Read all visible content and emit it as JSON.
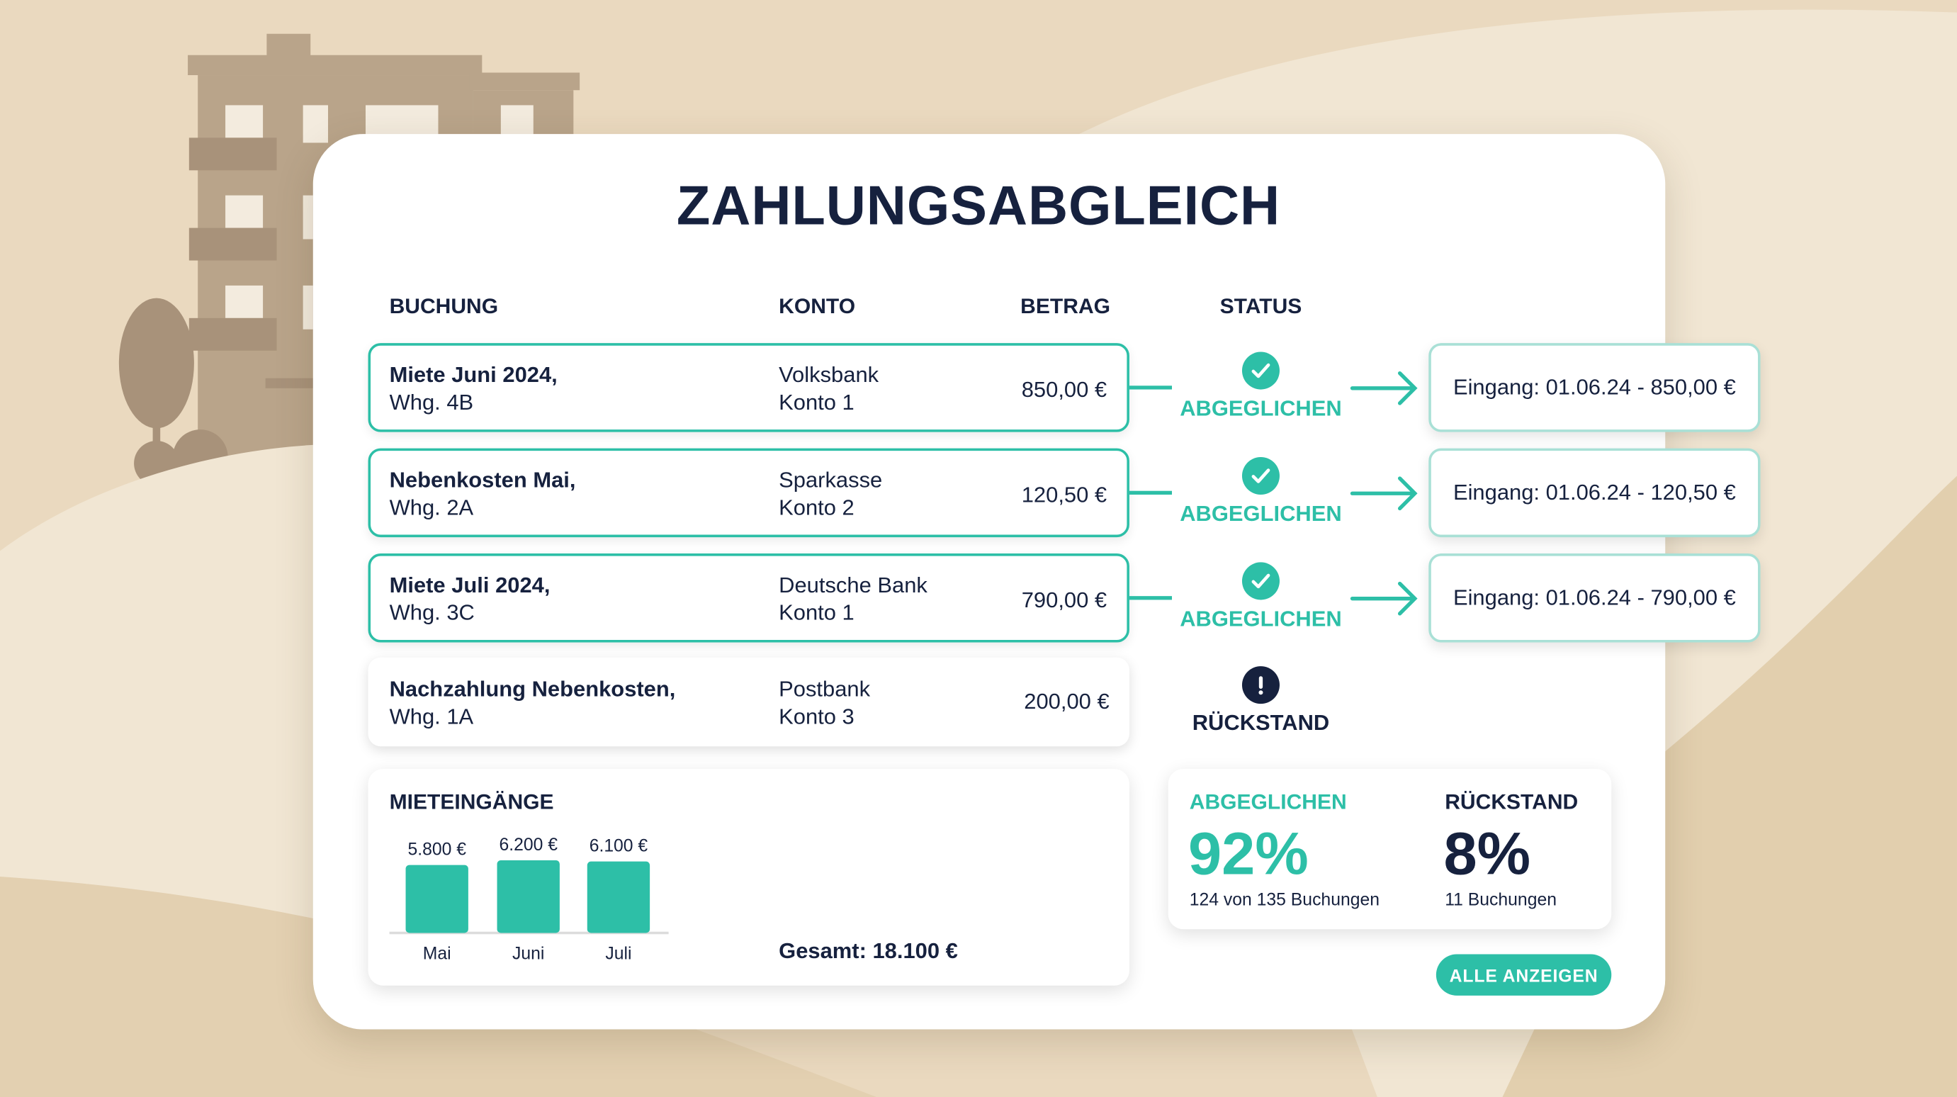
{
  "title": "ZAHLUNGSABGLEICH",
  "columns": {
    "booking": "BUCHUNG",
    "account": "KONTO",
    "amount": "BETRAG",
    "status": "STATUS"
  },
  "rows": [
    {
      "booking_line1": "Miete Juni 2024,",
      "booking_line2": "Whg. 4B",
      "account_line1": "Volksbank",
      "account_line2": "Konto 1",
      "amount": "850,00 €",
      "status": "ABGEGLICHEN",
      "status_icon": "check-circle-icon",
      "receipt": "Eingang: 01.06.24 - 850,00 €"
    },
    {
      "booking_line1": "Nebenkosten Mai,",
      "booking_line2": "Whg. 2A",
      "account_line1": "Sparkasse",
      "account_line2": "Konto 2",
      "amount": "120,50 €",
      "status": "ABGEGLICHEN",
      "status_icon": "check-circle-icon",
      "receipt": "Eingang: 01.06.24 - 120,50 €"
    },
    {
      "booking_line1": "Miete Juli 2024,",
      "booking_line2": "Whg. 3C",
      "account_line1": "Deutsche Bank",
      "account_line2": "Konto 1",
      "amount": "790,00 €",
      "status": "ABGEGLICHEN",
      "status_icon": "check-circle-icon",
      "receipt": "Eingang: 01.06.24 - 790,00 €"
    },
    {
      "booking_line1": "Nachzahlung Nebenkosten,",
      "booking_line2": "Whg. 1A",
      "account_line1": "Postbank",
      "account_line2": "Konto 3",
      "amount": "200,00 €",
      "status": "RÜCKSTAND",
      "status_icon": "exclamation-circle-icon"
    }
  ],
  "chart_data": {
    "type": "bar",
    "title": "MIETEINGÄNGE",
    "categories": [
      "Mai",
      "Juni",
      "Juli"
    ],
    "values": [
      5800,
      6200,
      6100
    ],
    "value_labels": [
      "5.800 €",
      "6.200 €",
      "6.100 €"
    ],
    "total": "Gesamt: 18.100 €",
    "grid": false,
    "color": "#2dbfa7"
  },
  "stats": {
    "matched_label": "ABGEGLICHEN",
    "matched_pct": "92%",
    "matched_detail": "124 von 135 Buchungen",
    "due_label": "RÜCKSTAND",
    "due_pct": "8%",
    "due_detail": "11 Buchungen"
  },
  "button": {
    "show_all": "ALLE ANZEIGEN"
  },
  "colors": {
    "accent": "#2dbfa7",
    "text": "#16213e",
    "background": "#ead9bf"
  }
}
